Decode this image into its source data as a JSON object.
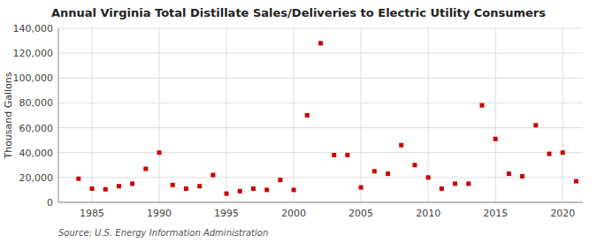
{
  "chart_data": {
    "type": "scatter",
    "title": "Annual Virginia Total Distillate Sales/Deliveries to Electric Utility Consumers",
    "y_label": "Thousand Gallons",
    "annotations": [
      "Source: U.S. Energy Information Administration"
    ],
    "x": [
      1984,
      1985,
      1986,
      1987,
      1988,
      1989,
      1990,
      1991,
      1992,
      1993,
      1994,
      1995,
      1996,
      1997,
      1998,
      1999,
      2000,
      2001,
      2002,
      2003,
      2004,
      2005,
      2006,
      2007,
      2008,
      2009,
      2010,
      2011,
      2012,
      2013,
      2014,
      2015,
      2016,
      2017,
      2018,
      2019,
      2020,
      2021
    ],
    "values": [
      19000,
      11000,
      10500,
      13000,
      15000,
      27000,
      40000,
      14000,
      11000,
      13000,
      22000,
      7000,
      9000,
      11000,
      10000,
      18000,
      10000,
      70000,
      128000,
      38000,
      38000,
      12000,
      25000,
      23000,
      46000,
      30000,
      20000,
      11000,
      15000,
      15000,
      78000,
      51000,
      23000,
      21000,
      62000,
      39000,
      40000,
      17000
    ],
    "color": "#cc0000",
    "marker": "square",
    "xlim": [
      1982.5,
      2021.5
    ],
    "ylim": [
      0,
      140000
    ],
    "xticks": [
      1985,
      1990,
      1995,
      2000,
      2005,
      2010,
      2015,
      2020
    ],
    "yticks": [
      0,
      {
        "value": 20000,
        "label": "20,000"
      },
      {
        "value": 40000,
        "label": "40,000"
      },
      {
        "value": 60000,
        "label": "60,000"
      },
      {
        "value": 80000,
        "label": "80,000"
      },
      {
        "value": 100000,
        "label": "100,000"
      },
      {
        "value": 120000,
        "label": "120,000"
      },
      {
        "value": 140000,
        "label": "140,000"
      }
    ],
    "grid": true
  }
}
